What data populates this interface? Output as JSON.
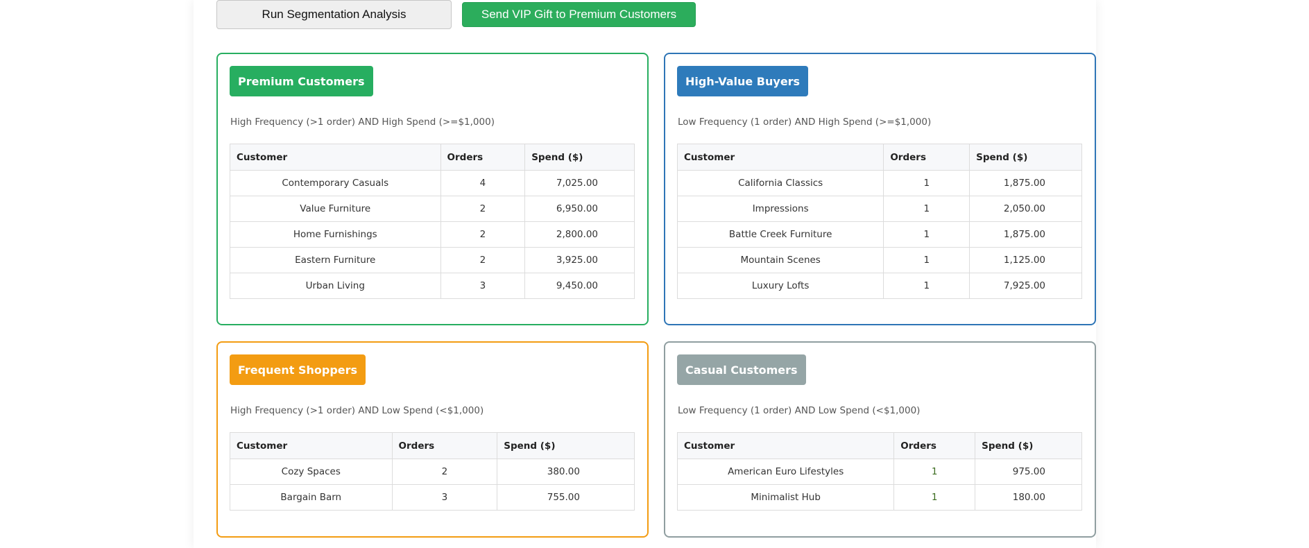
{
  "toolbar": {
    "run_label": "Run Segmentation Analysis",
    "vip_label": "Send VIP Gift to Premium Customers"
  },
  "colors": {
    "premium": "#27ae60",
    "high_value": "#2e7bbb",
    "frequent": "#f39c12",
    "casual": "#95a5a6"
  },
  "headers": {
    "customer": "Customer",
    "orders": "Orders",
    "spend": "Spend ($)"
  },
  "segments": [
    {
      "title": "Premium Customers",
      "description": "High Frequency (>1 order) AND High Spend (>=$1,000)",
      "rows": [
        {
          "customer": "Contemporary Casuals",
          "orders": "4",
          "spend": "7,025.00"
        },
        {
          "customer": "Value Furniture",
          "orders": "2",
          "spend": "6,950.00"
        },
        {
          "customer": "Home Furnishings",
          "orders": "2",
          "spend": "2,800.00"
        },
        {
          "customer": "Eastern Furniture",
          "orders": "2",
          "spend": "3,925.00"
        },
        {
          "customer": "Urban Living",
          "orders": "3",
          "spend": "9,450.00"
        }
      ]
    },
    {
      "title": "High-Value Buyers",
      "description": "Low Frequency (1 order) AND High Spend (>=$1,000)",
      "rows": [
        {
          "customer": "California Classics",
          "orders": "1",
          "spend": "1,875.00"
        },
        {
          "customer": "Impressions",
          "orders": "1",
          "spend": "2,050.00"
        },
        {
          "customer": "Battle Creek Furniture",
          "orders": "1",
          "spend": "1,875.00"
        },
        {
          "customer": "Mountain Scenes",
          "orders": "1",
          "spend": "1,125.00"
        },
        {
          "customer": "Luxury Lofts",
          "orders": "1",
          "spend": "7,925.00"
        }
      ]
    },
    {
      "title": "Frequent Shoppers",
      "description": "High Frequency (>1 order) AND Low Spend (<$1,000)",
      "rows": [
        {
          "customer": "Cozy Spaces",
          "orders": "2",
          "spend": "380.00"
        },
        {
          "customer": "Bargain Barn",
          "orders": "3",
          "spend": "755.00"
        }
      ]
    },
    {
      "title": "Casual Customers",
      "description": "Low Frequency (1 order) AND Low Spend (<$1,000)",
      "rows": [
        {
          "customer": "American Euro Lifestyles",
          "orders": "1",
          "spend": "975.00"
        },
        {
          "customer": "Minimalist Hub",
          "orders": "1",
          "spend": "180.00"
        }
      ]
    }
  ]
}
